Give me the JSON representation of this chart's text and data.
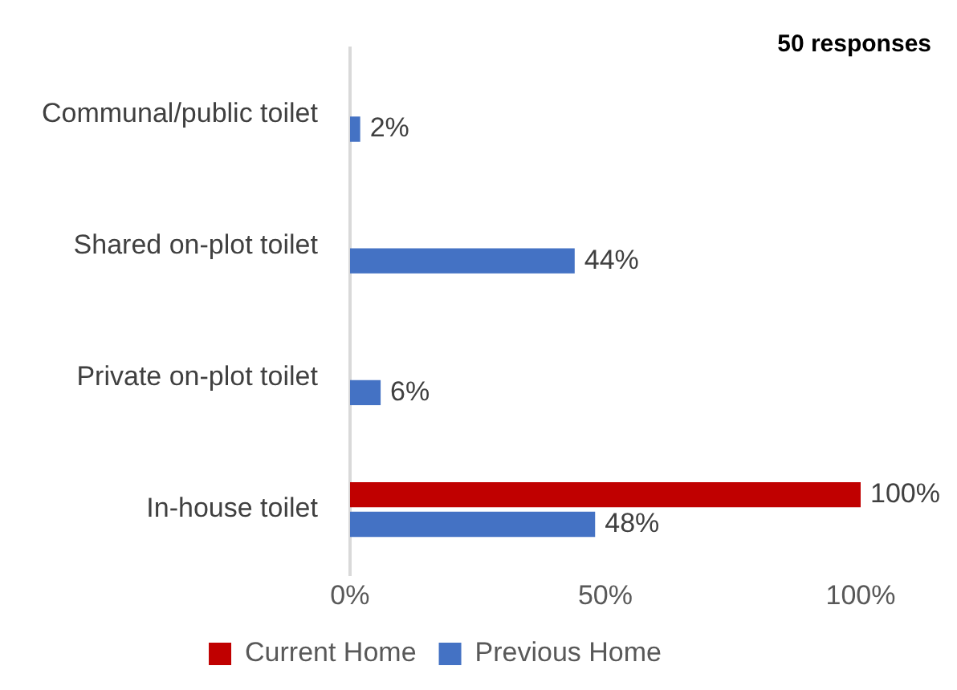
{
  "chart_data": {
    "type": "bar",
    "orientation": "horizontal",
    "categories": [
      "Communal/public toilet",
      "Shared on-plot toilet",
      "Private on-plot toilet",
      "In-house toilet"
    ],
    "series": [
      {
        "name": "Current Home",
        "color": "#c00000",
        "values": [
          null,
          null,
          null,
          100
        ],
        "value_labels": [
          null,
          null,
          null,
          "100%"
        ]
      },
      {
        "name": "Previous Home",
        "color": "#4472c4",
        "values": [
          2,
          44,
          6,
          48
        ],
        "value_labels": [
          "2%",
          "44%",
          "6%",
          "48%"
        ]
      }
    ],
    "xlim": [
      0,
      100
    ],
    "xticks": [
      {
        "value": 0,
        "label": "0%"
      },
      {
        "value": 50,
        "label": "50%"
      },
      {
        "value": 100,
        "label": "100%"
      }
    ],
    "grid": false,
    "legend": "bottom",
    "annotations": [
      "50 responses"
    ]
  }
}
